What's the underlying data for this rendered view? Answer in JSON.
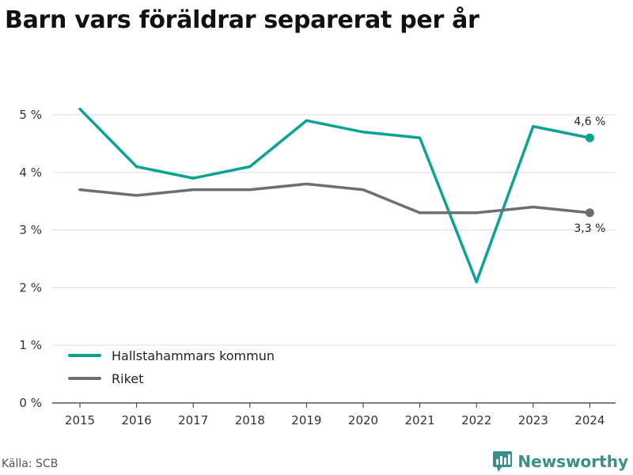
{
  "title": "Barn vars föräldrar separerat per år",
  "source": "Källa: SCB",
  "brand": {
    "name": "Newsworthy",
    "icon": "newsworthy-logo-icon"
  },
  "colors": {
    "series1": "#0aa394",
    "series2": "#6f6e74",
    "grid": "#dddddd",
    "axis": "#333333"
  },
  "chart_data": {
    "type": "line",
    "x": [
      "2015",
      "2016",
      "2017",
      "2018",
      "2019",
      "2020",
      "2021",
      "2022",
      "2023",
      "2024"
    ],
    "ylim": [
      0,
      5.5
    ],
    "yticks": [
      0,
      1,
      2,
      3,
      4,
      5
    ],
    "ytick_labels": [
      "0 %",
      "1 %",
      "2 %",
      "3 %",
      "4 %",
      "5 %"
    ],
    "grid": true,
    "legend_position": "bottom-left",
    "series": [
      {
        "name": "Hallstahammars kommun",
        "color": "#0aa394",
        "values": [
          5.1,
          4.1,
          3.9,
          4.1,
          4.9,
          4.7,
          4.6,
          2.1,
          4.8,
          4.6
        ],
        "end_label": "4,6 %"
      },
      {
        "name": "Riket",
        "color": "#6f6e74",
        "values": [
          3.7,
          3.6,
          3.7,
          3.7,
          3.8,
          3.7,
          3.3,
          3.3,
          3.4,
          3.3
        ],
        "end_label": "3,3 %"
      }
    ]
  }
}
